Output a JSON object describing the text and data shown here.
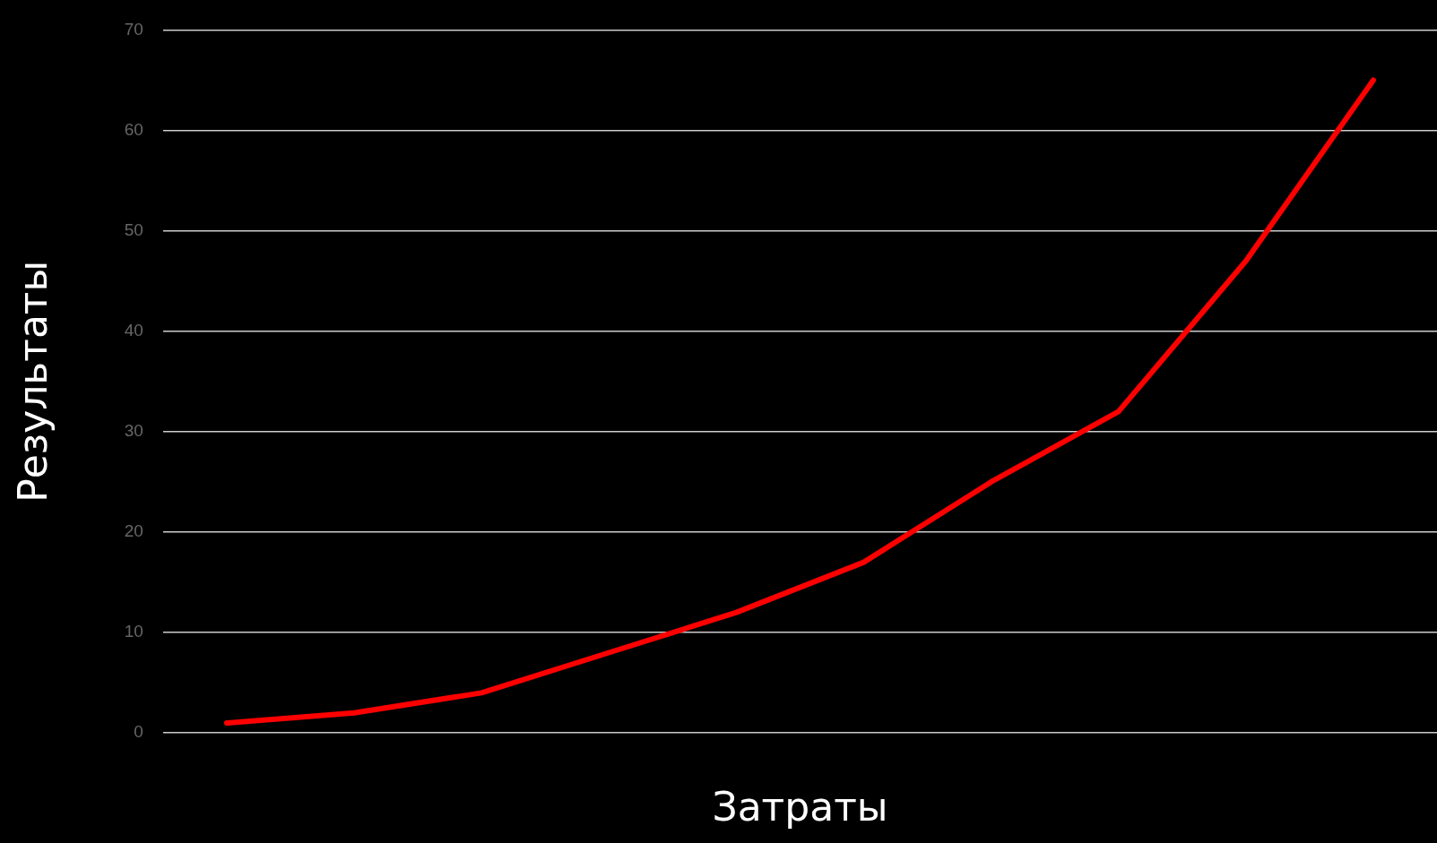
{
  "chart_data": {
    "type": "line",
    "xlabel": "Затраты",
    "ylabel": "Результаты",
    "categories": [
      null,
      null,
      null,
      null,
      null,
      null,
      null,
      null,
      null,
      null
    ],
    "series": [
      {
        "color": "#ff0000",
        "values": [
          1,
          2,
          4,
          8,
          12,
          17,
          25,
          32,
          47,
          65
        ]
      }
    ],
    "ylim": [
      0,
      70
    ],
    "yticks": [
      0,
      10,
      20,
      30,
      40,
      50,
      60,
      70
    ],
    "grid": "y",
    "legend": false,
    "marker": "none",
    "line_style": "solid",
    "tick_labels": "y"
  }
}
